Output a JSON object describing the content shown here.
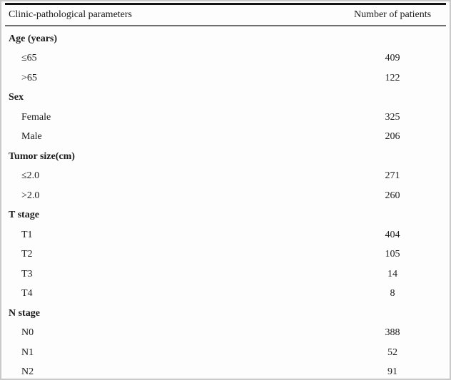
{
  "table": {
    "header": {
      "param_label": "Clinic-pathological parameters",
      "value_label": "Number of patients"
    },
    "rows": [
      {
        "type": "section",
        "label": "Age (years)",
        "value": ""
      },
      {
        "type": "item",
        "label": "≤65",
        "value": "409"
      },
      {
        "type": "item",
        "label": ">65",
        "value": "122"
      },
      {
        "type": "section",
        "label": "Sex",
        "value": ""
      },
      {
        "type": "item",
        "label": "Female",
        "value": "325"
      },
      {
        "type": "item",
        "label": "Male",
        "value": "206"
      },
      {
        "type": "section",
        "label": "Tumor size(cm)",
        "value": ""
      },
      {
        "type": "item",
        "label": "≤2.0",
        "value": "271"
      },
      {
        "type": "item",
        "label": ">2.0",
        "value": "260"
      },
      {
        "type": "section",
        "label": "T stage",
        "value": ""
      },
      {
        "type": "item",
        "label": "T1",
        "value": "404"
      },
      {
        "type": "item",
        "label": "T2",
        "value": "105"
      },
      {
        "type": "item",
        "label": "T3",
        "value": "14"
      },
      {
        "type": "item",
        "label": "T4",
        "value": "8"
      },
      {
        "type": "section",
        "label": "N stage",
        "value": ""
      },
      {
        "type": "item",
        "label": "N0",
        "value": "388"
      },
      {
        "type": "item",
        "label": "N1",
        "value": "52"
      },
      {
        "type": "item",
        "label": "N2",
        "value": "91"
      }
    ]
  }
}
